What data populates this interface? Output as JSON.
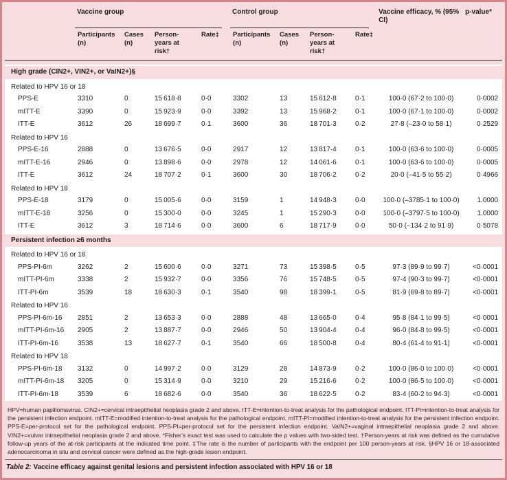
{
  "colors": {
    "panel_bg": "#f8dde0",
    "frame": "#d4868f",
    "row_bg": "#ffffff",
    "rule_dark": "#2b2b2b",
    "caption_rule": "#4d4d4d",
    "text": "#1c1c1c"
  },
  "table": {
    "header": {
      "vaccine_group": "Vaccine group",
      "control_group": "Control group",
      "efficacy": "Vaccine efficacy, % (95% CI)",
      "p_value": "p-value*",
      "subcols": [
        "Participants (n)",
        "Cases (n)",
        "Person-years at risk†",
        "Rate‡"
      ]
    },
    "sections": [
      {
        "title": "High grade (CIN2+, VIN2+, or VaIN2+)§",
        "subsections": [
          {
            "label": "Related to HPV 16 or 18",
            "rows": [
              [
                "PPS-E",
                "3310",
                "0",
                "15 618·8",
                "0·0",
                "3302",
                "13",
                "15 612·8",
                "0·1",
                "100·0 (67·2 to 100·0)",
                "0·0002"
              ],
              [
                "mITT-E",
                "3390",
                "0",
                "15 923·9",
                "0·0",
                "3392",
                "13",
                "15 968·2",
                "0·1",
                "100·0 (67·1 to 100·0)",
                "0·0002"
              ],
              [
                "ITT-E",
                "3612",
                "26",
                "18 699·7",
                "0·1",
                "3600",
                "36",
                "18 701·3",
                "0·2",
                "27·8 (–23·0 to 58·1)",
                "0·2529"
              ]
            ]
          },
          {
            "label": "Related to HPV 16",
            "rows": [
              [
                "PPS-E-16",
                "2888",
                "0",
                "13 676·5",
                "0·0",
                "2917",
                "12",
                "13 817·4",
                "0·1",
                "100·0 (63·6 to 100·0)",
                "0·0005"
              ],
              [
                "mITT-E-16",
                "2946",
                "0",
                "13 898·6",
                "0·0",
                "2978",
                "12",
                "14 061·6",
                "0·1",
                "100·0 (63·6 to 100·0)",
                "0·0005"
              ],
              [
                "ITT-E",
                "3612",
                "24",
                "18 707·2",
                "0·1",
                "3600",
                "30",
                "18 706·2",
                "0·2",
                "20·0 (–41·5 to 55·2)",
                "0·4966"
              ]
            ]
          },
          {
            "label": "Related to HPV 18",
            "rows": [
              [
                "PPS-E-18",
                "3179",
                "0",
                "15 005·6",
                "0·0",
                "3159",
                "1",
                "14 948·3",
                "0·0",
                "100·0 (–3785·1 to 100·0)",
                "1.0000"
              ],
              [
                "mITT-E-18",
                "3256",
                "0",
                "15 300·0",
                "0·0",
                "3245",
                "1",
                "15 290·3",
                "0·0",
                "100·0 (–3797·5 to 100·0)",
                "1.0000"
              ],
              [
                "ITT-E",
                "3612",
                "3",
                "18 714·6",
                "0·0",
                "3600",
                "6",
                "18 717·9",
                "0·0",
                "50·0 (–134·2 to 91·9)",
                "0·5078"
              ]
            ]
          }
        ]
      },
      {
        "title": "Persistent infection ≥6 months",
        "subsections": [
          {
            "label": "Related to HPV 16 or 18",
            "rows": [
              [
                "PPS-PI-6m",
                "3262",
                "2",
                "15 600·6",
                "0·0",
                "3271",
                "73",
                "15 398·5",
                "0·5",
                "97·3 (89·9 to 99·7)",
                "<0·0001"
              ],
              [
                "mITT-PI-6m",
                "3338",
                "2",
                "15 932·7",
                "0·0",
                "3356",
                "76",
                "15 748·5",
                "0·5",
                "97·4 (90·3 to 99·7)",
                "<0·0001"
              ],
              [
                "ITT-PI-6m",
                "3539",
                "18",
                "18 630·3",
                "0·1",
                "3540",
                "98",
                "18 399·1",
                "0·5",
                "81·9 (69·8 to 89·7)",
                "<0·0001"
              ]
            ]
          },
          {
            "label": "Related to HPV 16",
            "rows": [
              [
                "PPS-PI-6m-16",
                "2851",
                "2",
                "13 653·3",
                "0·0",
                "2888",
                "48",
                "13 665·0",
                "0·4",
                "95·8 (84·1 to 99·5)",
                "<0·0001"
              ],
              [
                "mITT-PI-6m-16",
                "2905",
                "2",
                "13 887·7",
                "0·0",
                "2946",
                "50",
                "13 904·4",
                "0·4",
                "96·0 (84·8 to 99·5)",
                "<0·0001"
              ],
              [
                "ITT-PI-6m-16",
                "3538",
                "13",
                "18 627·7",
                "0·1",
                "3540",
                "66",
                "18 500·8",
                "0·4",
                "80·4 (61·4 to 91·1)",
                "<0·0001"
              ]
            ]
          },
          {
            "label": "Related to HPV 18",
            "rows": [
              [
                "PPS-PI-6m-18",
                "3132",
                "0",
                "14 997·2",
                "0·0",
                "3129",
                "28",
                "14 873·9",
                "0·2",
                "100·0 (86·0 to 100·0)",
                "<0·0001"
              ],
              [
                "mITT-PI-6m-18",
                "3205",
                "0",
                "15 314·9",
                "0·0",
                "3210",
                "29",
                "15 216·6",
                "0·2",
                "100·0 (86·5 to 100·0)",
                "<0·0001"
              ],
              [
                "ITT-PI-6m-18",
                "3539",
                "6",
                "18 682·6",
                "0·0",
                "3540",
                "36",
                "18 622·5",
                "0·2",
                "83·4 (60·2 to 94·3)",
                "<0·0001"
              ]
            ]
          }
        ]
      }
    ]
  },
  "footnote": "HPV=human papillomavirus. CIN2+=cervical intraepithelial neoplasia grade 2 and above. ITT-E=intention-to-treat analysis for the pathological endpoint. ITT-PI=intention-to-treat analysis for the persistent infection endpoint. mITT-E=modified intention-to-treat analysis for the pathological endpoint. mITT-PI=modified intention-to-treat analysis for the persistent infection endpoint. PPS-E=per-protocol set for the pathological endpoint. PPS-PI=per-protocol set for the persistent infection endpoint. VaIN2+=vaginal intraepithelial neoplasia grade 2 and above. VIN2+=vulvar intraepithelial neoplasia grade 2 and above. *Fisher’s exact test was used to calculate the p values with two-sided test. †Person-years at risk was defined as the cumulative follow-up years of the at-risk participants at the indicated time point. ‡The rate is the number of participants with the endpoint per 100 person-years at risk. §HPV 16 or 18-associated adenocarcinoma in situ and cervical cancer were defined as the high-grade lesion endpoint.",
  "caption": {
    "label": "Table 2:",
    "text": "Vaccine efficacy against genital lesions and persistent infection associated with HPV 16 or 18"
  }
}
